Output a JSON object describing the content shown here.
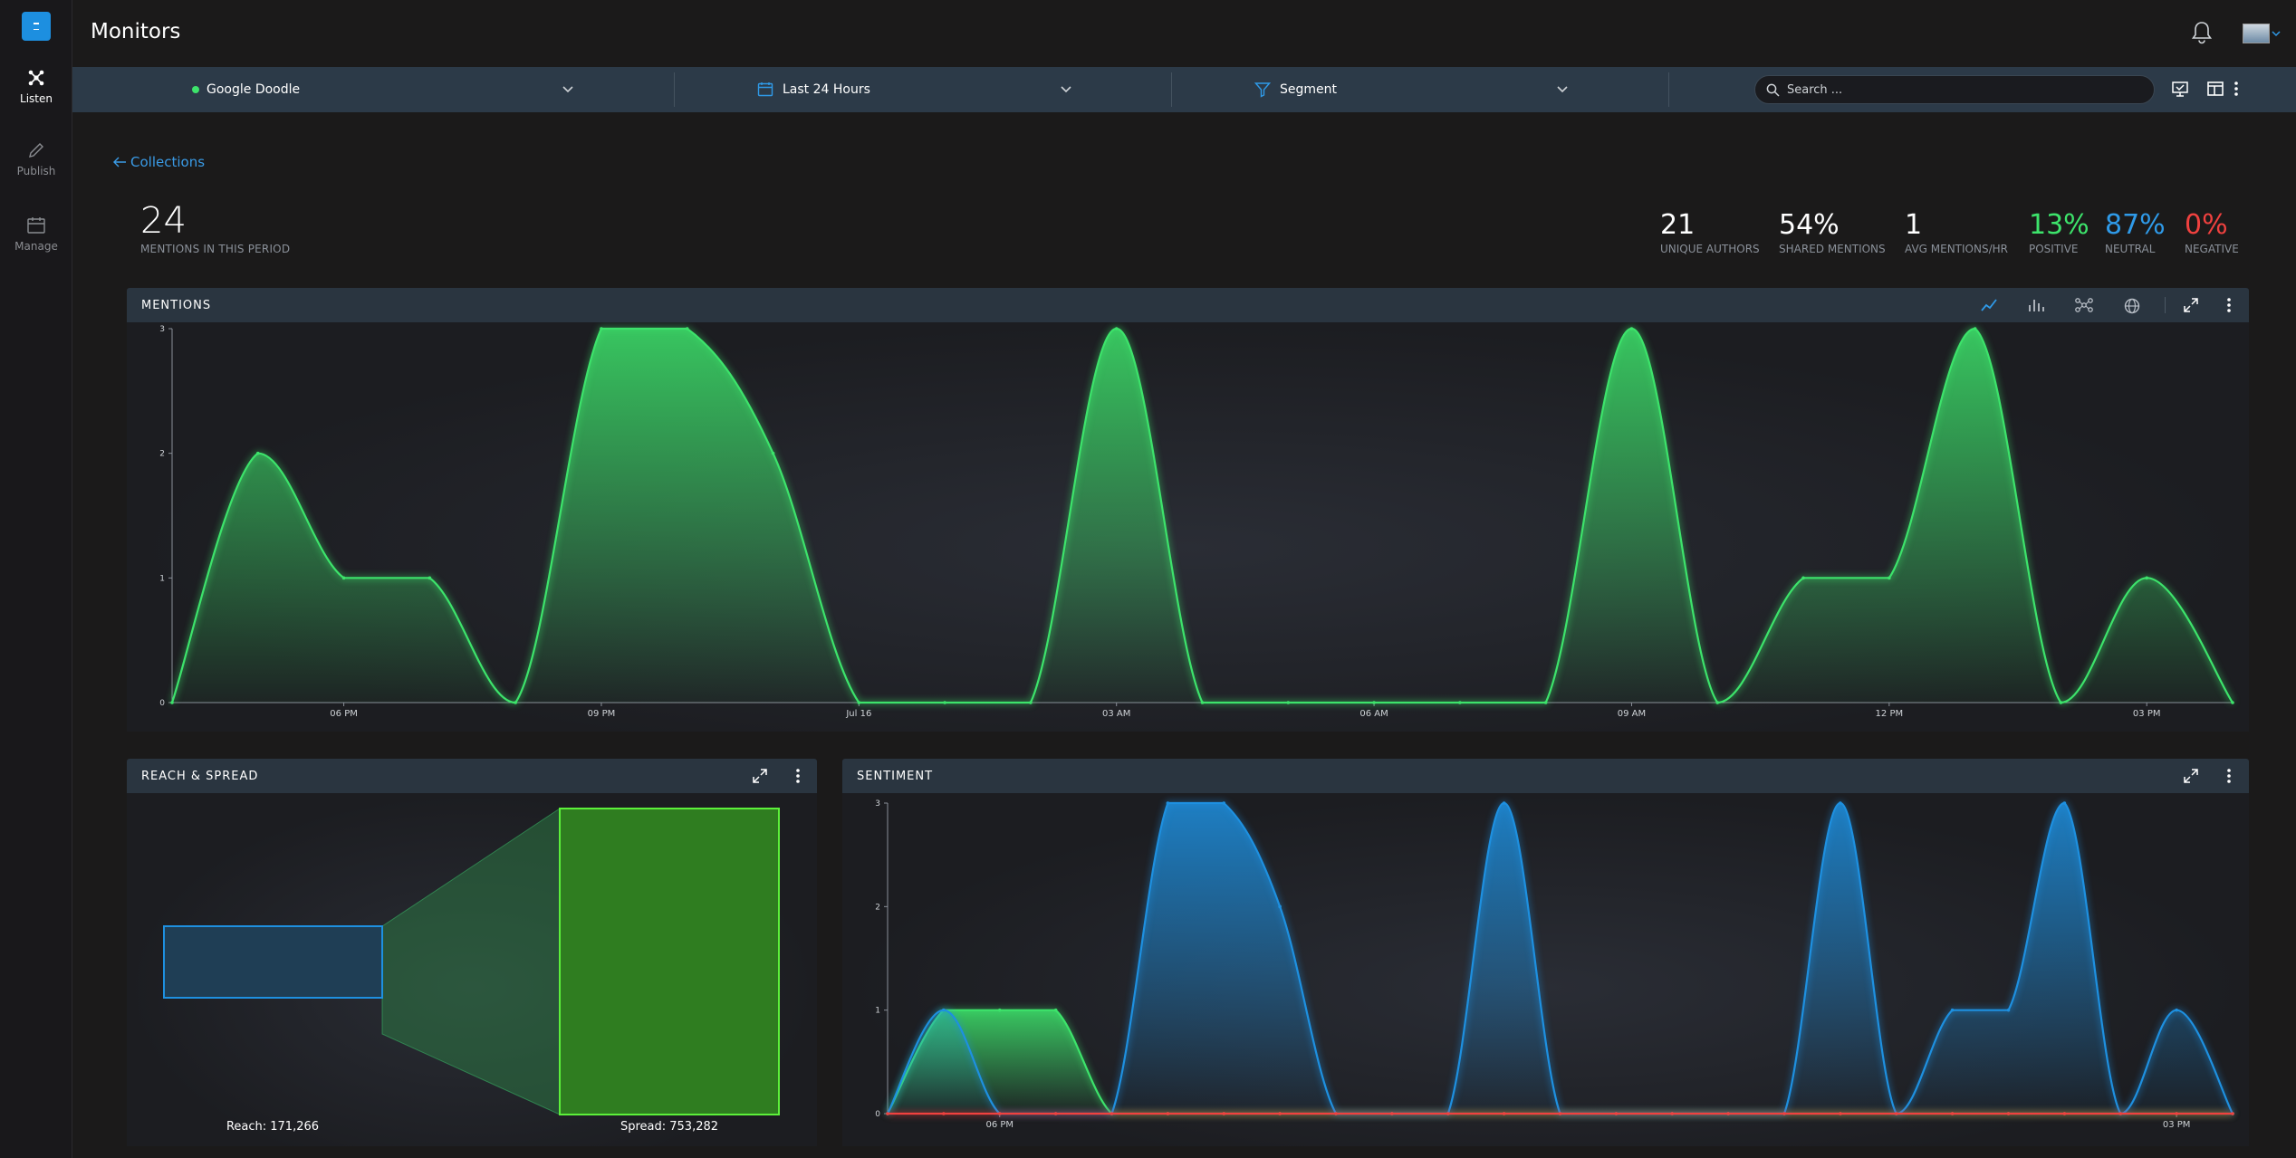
{
  "app": {
    "title": "Monitors"
  },
  "sidebar": {
    "items": [
      {
        "label": "Listen",
        "icon": "network-icon",
        "active": true
      },
      {
        "label": "Publish",
        "icon": "pencil-icon",
        "active": false
      },
      {
        "label": "Manage",
        "icon": "calendar-icon",
        "active": false
      }
    ]
  },
  "filters": {
    "monitor": "Google Doodle",
    "period": "Last 24 Hours",
    "segment": "Segment",
    "search_placeholder": "Search ..."
  },
  "breadcrumb": {
    "back_label": "Collections"
  },
  "summary": {
    "mentions": {
      "value": "24",
      "label": "MENTIONS IN THIS PERIOD"
    },
    "stats": [
      {
        "value": "21",
        "label": "UNIQUE AUTHORS",
        "color": "#ffffff"
      },
      {
        "value": "54%",
        "label": "SHARED MENTIONS",
        "color": "#ffffff"
      },
      {
        "value": "1",
        "label": "AVG MENTIONS/HR",
        "color": "#ffffff"
      },
      {
        "value": "13%",
        "label": "POSITIVE",
        "color": "#3de36b"
      },
      {
        "value": "87%",
        "label": "NEUTRAL",
        "color": "#2f9ae8"
      },
      {
        "value": "0%",
        "label": "NEGATIVE",
        "color": "#f0413f"
      }
    ]
  },
  "panels": {
    "mentions": {
      "title": "MENTIONS"
    },
    "reach": {
      "title": "REACH & SPREAD",
      "reach_label": "Reach: 171,266",
      "spread_label": "Spread: 753,282",
      "reach": 171266,
      "spread": 753282
    },
    "sentiment": {
      "title": "SENTIMENT"
    }
  },
  "colors": {
    "positive": "#3de36b",
    "neutral": "#1e90e0",
    "negative": "#f0413f",
    "accent": "#1d8fe0"
  },
  "chart_data": [
    {
      "type": "area",
      "title": "MENTIONS",
      "ylim": [
        0,
        3
      ],
      "yticks": [
        "0",
        "1",
        "2",
        "3"
      ],
      "x_tick_labels": [
        "06 PM",
        "09 PM",
        "Jul 16",
        "03 AM",
        "06 AM",
        "09 AM",
        "12 PM",
        "03 PM"
      ],
      "x_tick_index": [
        2,
        5,
        8,
        11,
        14,
        17,
        20,
        23
      ],
      "series": [
        {
          "values": [
            0,
            2,
            1,
            1,
            0,
            3,
            3,
            2,
            0,
            0,
            0,
            3,
            0,
            0,
            0,
            0,
            0,
            3,
            0,
            1,
            1,
            3,
            0,
            1,
            0
          ]
        }
      ]
    },
    {
      "type": "area",
      "title": "SENTIMENT",
      "ylim": [
        0,
        3
      ],
      "yticks": [
        "0",
        "1",
        "2",
        "3"
      ],
      "x_tick_labels": [
        "06 PM",
        "03 PM"
      ],
      "x_tick_index": [
        2,
        23
      ],
      "series": [
        {
          "name": "Positive",
          "values": [
            0,
            1,
            1,
            1,
            0,
            0,
            0,
            0,
            0,
            0,
            0,
            0,
            0,
            0,
            0,
            0,
            0,
            0,
            0,
            0,
            0,
            0,
            0,
            0,
            0
          ]
        },
        {
          "name": "Neutral",
          "values": [
            0,
            1,
            0,
            0,
            0,
            3,
            3,
            2,
            0,
            0,
            0,
            3,
            0,
            0,
            0,
            0,
            0,
            3,
            0,
            1,
            1,
            3,
            0,
            1,
            0
          ]
        },
        {
          "name": "Negative",
          "values": [
            0,
            0,
            0,
            0,
            0,
            0,
            0,
            0,
            0,
            0,
            0,
            0,
            0,
            0,
            0,
            0,
            0,
            0,
            0,
            0,
            0,
            0,
            0,
            0,
            0
          ]
        }
      ]
    }
  ]
}
